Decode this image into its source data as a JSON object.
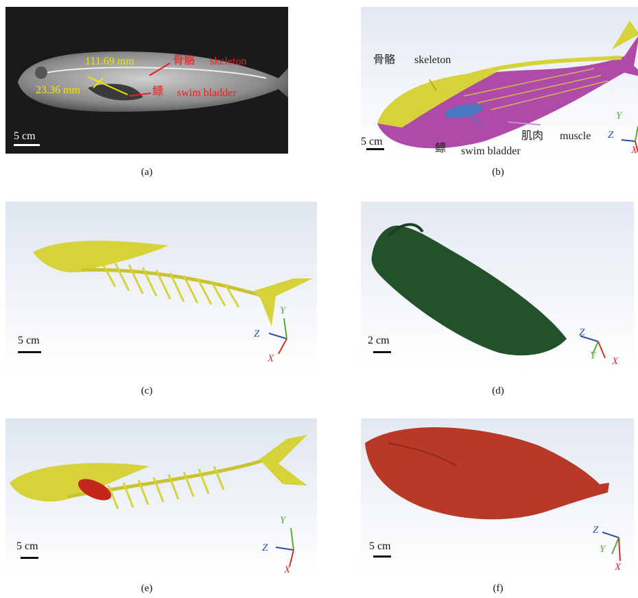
{
  "figure": {
    "panels": [
      {
        "caption": "(a)",
        "annotations": {
          "length_1": "111.69 mm",
          "length_2": "23.36 mm",
          "skeleton_cn": "骨骼",
          "skeleton_en": "skeleton",
          "bladder_cn": "鳔",
          "bladder_en": "swim bladder"
        },
        "scale_bar": "5 cm"
      },
      {
        "caption": "(b)",
        "annotations": {
          "skeleton_cn": "骨骼",
          "skeleton_en": "skeleton",
          "muscle_cn": "肌肉",
          "muscle_en": "muscle",
          "bladder_cn": "鳔",
          "bladder_en": "swim bladder"
        },
        "scale_bar": "5 cm",
        "axes": {
          "x": "X",
          "y": "Y",
          "z": "Z"
        }
      },
      {
        "caption": "(c)",
        "scale_bar": "5 cm",
        "axes": {
          "x": "X",
          "y": "Y",
          "z": "Z"
        }
      },
      {
        "caption": "(d)",
        "scale_bar": "2 cm",
        "axes": {
          "x": "X",
          "y": "Y",
          "z": "Z"
        }
      },
      {
        "caption": "(e)",
        "scale_bar": "5 cm",
        "axes": {
          "x": "X",
          "y": "Y",
          "z": "Z"
        }
      },
      {
        "caption": "(f)",
        "scale_bar": "5 cm",
        "axes": {
          "x": "X",
          "y": "Y",
          "z": "Z"
        }
      }
    ],
    "colors": {
      "annotation_yellow": "#f2e600",
      "annotation_red": "#e62020",
      "skeleton": "#d6d33a",
      "muscle": "#b04aa8",
      "swim_bladder": "#c4261c",
      "swim_bladder_surface": "#23512a",
      "whole_body": "#b83a26",
      "axis_x": "#d32f2f",
      "axis_y": "#5aa830",
      "axis_z": "#2a4fa0"
    }
  }
}
